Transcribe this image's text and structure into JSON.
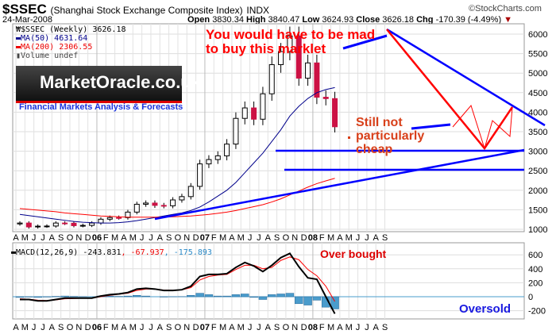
{
  "header": {
    "symbol": "$SSEC",
    "name": "(Shanghai Stock Exchange Composite Index)",
    "exchange": "INDX",
    "date": "24-Mar-2008",
    "brand": "©StockCharts.com",
    "open_label": "Open",
    "open": "3830.34",
    "high_label": "High",
    "high": "3840.47",
    "low_label": "Low",
    "low": "3624.93",
    "close_label": "Close",
    "close": "3626.18",
    "chg_label": "Chg",
    "chg": "-170.39 (-4.49%)"
  },
  "legend": {
    "price": "$SSEC (Weekly) 3626.18",
    "ma50": "MA(50) 4631.64",
    "ma200": "MA(200) 2306.55",
    "volume": "Volume undef",
    "macd": "MACD(12,26,9) -243.831",
    "macd_signal": ", -67.937",
    "macd_hist": ", -175.893"
  },
  "logo": {
    "text": "MarketOracle.co.uk",
    "tagline": "Financial Markets Analysis & Forecasts"
  },
  "annotations": {
    "mad1": "You would have to be mad",
    "mad2": "to buy this marklet",
    "cheap1": "Still not",
    "cheap2": "particularly",
    "cheap3": "cheap",
    "overbought": "Over bought",
    "oversold": "Oversold"
  },
  "colors": {
    "up": "#ffffff",
    "down": "#cc1144",
    "ma50": "#00008b",
    "ma200": "#ff0000",
    "trend": "#0000ff",
    "macd": "#000000",
    "signal": "#ff0000",
    "hist": "#4a9ccc"
  },
  "chart_data": [
    {
      "type": "candlestick",
      "title": "$SSEC (Weekly)",
      "ylim": [
        1000,
        6000
      ],
      "yticks": [
        1000,
        1500,
        2000,
        2500,
        3000,
        3500,
        4000,
        4500,
        5000,
        5500,
        6000
      ],
      "xticks": [
        "A",
        "M",
        "J",
        "J",
        "A",
        "S",
        "O",
        "N",
        "D",
        "06",
        "F",
        "M",
        "A",
        "M",
        "J",
        "J",
        "A",
        "S",
        "O",
        "N",
        "D",
        "07",
        "F",
        "M",
        "A",
        "M",
        "J",
        "J",
        "A",
        "S",
        "O",
        "N",
        "D",
        "08",
        "F",
        "M",
        "A",
        "M",
        "J",
        "J",
        "A",
        "S"
      ],
      "x": [
        "2005-04",
        "2005-05",
        "2005-06",
        "2005-07",
        "2005-08",
        "2005-09",
        "2005-10",
        "2005-11",
        "2005-12",
        "2006-01",
        "2006-02",
        "2006-03",
        "2006-04",
        "2006-05",
        "2006-06",
        "2006-07",
        "2006-08",
        "2006-09",
        "2006-10",
        "2006-11",
        "2006-12",
        "2007-01",
        "2007-02",
        "2007-03",
        "2007-04",
        "2007-05",
        "2007-06",
        "2007-07",
        "2007-08",
        "2007-09",
        "2007-10",
        "2007-11",
        "2007-12",
        "2008-01",
        "2008-02",
        "2008-03"
      ],
      "close": [
        1160,
        1060,
        1080,
        1083,
        1160,
        1155,
        1093,
        1100,
        1161,
        1258,
        1300,
        1299,
        1440,
        1641,
        1672,
        1612,
        1601,
        1752,
        1837,
        2099,
        2675,
        2786,
        2881,
        3183,
        3841,
        4109,
        3820,
        4471,
        5218,
        5552,
        5954,
        4871,
        5262,
        4383,
        4348,
        3626
      ],
      "series": [
        {
          "name": "MA(50)",
          "values": [
            1380,
            1350,
            1320,
            1290,
            1260,
            1230,
            1200,
            1180,
            1170,
            1160,
            1160,
            1170,
            1190,
            1220,
            1260,
            1300,
            1340,
            1380,
            1420,
            1480,
            1570,
            1700,
            1850,
            2000,
            2200,
            2450,
            2700,
            2950,
            3250,
            3550,
            3900,
            4150,
            4350,
            4500,
            4580,
            4631
          ]
        },
        {
          "name": "MA(200)",
          "values": [
            1530,
            1510,
            1490,
            1470,
            1450,
            1420,
            1400,
            1380,
            1360,
            1340,
            1330,
            1320,
            1310,
            1310,
            1310,
            1310,
            1310,
            1320,
            1330,
            1340,
            1360,
            1380,
            1410,
            1440,
            1480,
            1530,
            1580,
            1630,
            1700,
            1780,
            1880,
            1980,
            2080,
            2170,
            2240,
            2306
          ]
        }
      ]
    },
    {
      "type": "line",
      "title": "MACD(12,26,9)",
      "ylim": [
        -300,
        700
      ],
      "yticks": [
        -200,
        0,
        200,
        400,
        600
      ],
      "x": [
        "2005-04",
        "2005-05",
        "2005-06",
        "2005-07",
        "2005-08",
        "2005-09",
        "2005-10",
        "2005-11",
        "2005-12",
        "2006-01",
        "2006-02",
        "2006-03",
        "2006-04",
        "2006-05",
        "2006-06",
        "2006-07",
        "2006-08",
        "2006-09",
        "2006-10",
        "2006-11",
        "2006-12",
        "2007-01",
        "2007-02",
        "2007-03",
        "2007-04",
        "2007-05",
        "2007-06",
        "2007-07",
        "2007-08",
        "2007-09",
        "2007-10",
        "2007-11",
        "2007-12",
        "2008-01",
        "2008-02",
        "2008-03"
      ],
      "series": [
        {
          "name": "MACD",
          "values": [
            -40,
            -40,
            -60,
            -60,
            -40,
            -20,
            -20,
            -20,
            -20,
            10,
            30,
            40,
            60,
            110,
            120,
            110,
            90,
            90,
            100,
            150,
            290,
            320,
            320,
            330,
            420,
            490,
            440,
            360,
            450,
            560,
            620,
            430,
            270,
            250,
            0,
            -243.831
          ]
        },
        {
          "name": "Signal",
          "values": [
            -30,
            -35,
            -50,
            -55,
            -45,
            -30,
            -25,
            -22,
            -20,
            0,
            20,
            35,
            50,
            90,
            110,
            110,
            95,
            92,
            98,
            130,
            240,
            290,
            310,
            320,
            390,
            450,
            450,
            400,
            420,
            520,
            570,
            530,
            390,
            300,
            150,
            -67.937
          ]
        }
      ]
    }
  ]
}
